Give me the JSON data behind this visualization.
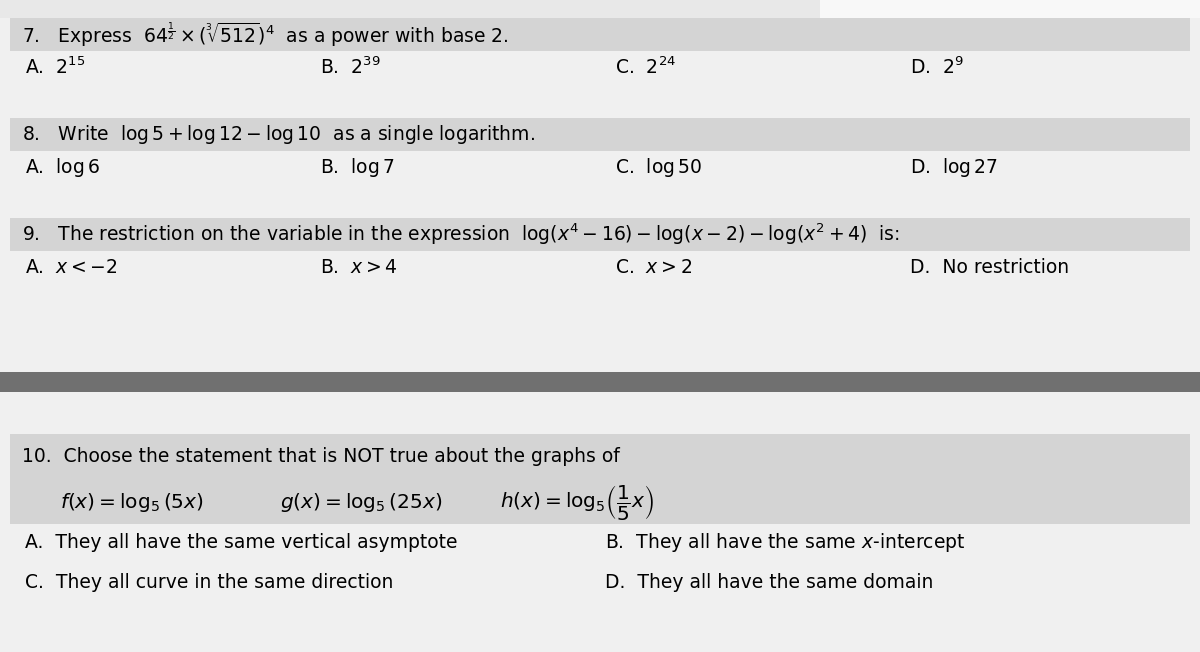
{
  "bg_color": "#f0f0f0",
  "header_bg": "#d4d4d4",
  "answer_bg": "#f0f0f0",
  "separator_bg": "#707070",
  "q10_box_bg": "#d4d4d4",
  "top_strip_bg": "#e8e8e8",
  "q7_header": "7.   Express  $64^{\\frac{1}{2}} \\times \\left(\\sqrt[3]{512}\\right)^{4}$  as a power with base 2.",
  "q7_answers": [
    "A.  $2^{15}$",
    "B.  $2^{39}$",
    "C.  $2^{24}$",
    "D.  $2^{9}$"
  ],
  "q8_header": "8.   Write  $\\log 5 + \\log 12 - \\log 10$  as a single logarithm.",
  "q8_answers": [
    "A.  $\\log 6$",
    "B.  $\\log 7$",
    "C.  $\\log 50$",
    "D.  $\\log 27$"
  ],
  "q9_header": "9.   The restriction on the variable in the expression  $\\log(x^4 - 16) - \\log(x-2) - \\log(x^2+4)$  is:",
  "q9_answers": [
    "A.  $x < -2$",
    "B.  $x > 4$",
    "C.  $x > 2$",
    "D.  No restriction"
  ],
  "q10_header": "10.  Choose the statement that is NOT true about the graphs of",
  "q10_func_f": "$f(x) = \\log_5(5x)$",
  "q10_func_g": "$g(x) = \\log_5(25x)$",
  "q10_func_h": "$h(x) = \\log_5\\!\\left(\\dfrac{1}{5}x\\right)$",
  "q10_answers_left": [
    "A.  They all have the same vertical asymptote",
    "C.  They all curve in the same direction"
  ],
  "q10_answers_right": [
    "B.  They all have the same $x$-intercept",
    "D.  They all have the same domain"
  ],
  "font_size": 13.5
}
